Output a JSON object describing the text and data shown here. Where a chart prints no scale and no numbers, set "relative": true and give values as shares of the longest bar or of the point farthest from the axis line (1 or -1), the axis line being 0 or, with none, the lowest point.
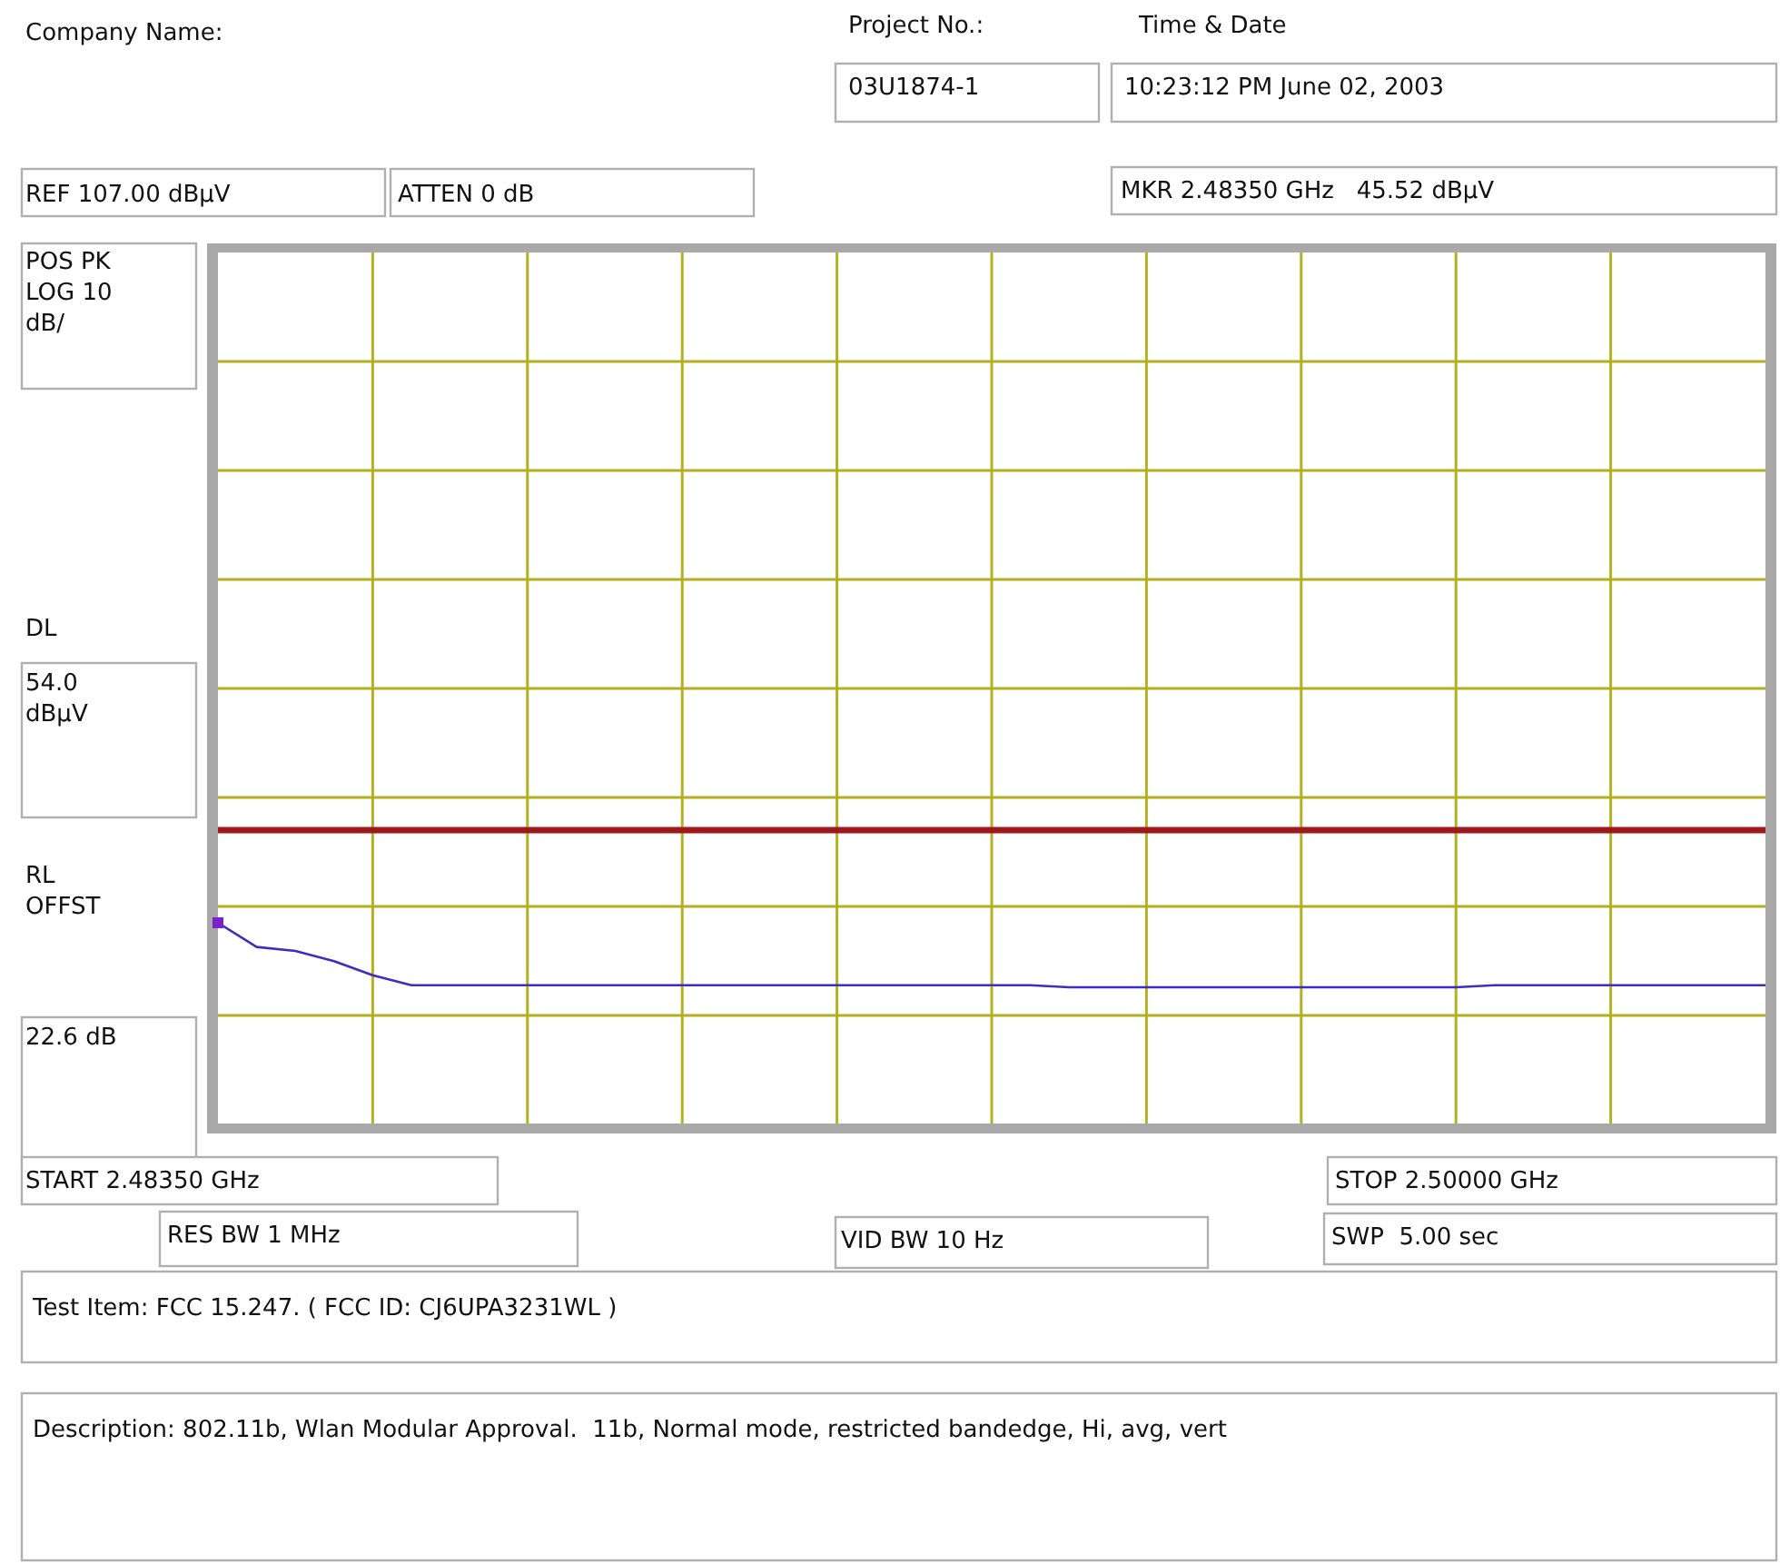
{
  "chart_data": {
    "type": "line",
    "relative": true,
    "categories": [
      null,
      null,
      null,
      null,
      null,
      null,
      null,
      null,
      null,
      null,
      null,
      null,
      null,
      null,
      null,
      null,
      null,
      null,
      null,
      null,
      null,
      null,
      null,
      null,
      null,
      null,
      null,
      null,
      null,
      null,
      null,
      null,
      null,
      null,
      null,
      null,
      null,
      null,
      null,
      null,
      null
    ],
    "series": [
      {
        "color": "#3b2fc2",
        "values": [
          1,
          0.88,
          0.86,
          0.81,
          0.74,
          0.69,
          0.69,
          0.69,
          0.69,
          0.69,
          0.69,
          0.69,
          0.69,
          0.69,
          0.69,
          0.69,
          0.69,
          0.69,
          0.69,
          0.69,
          0.69,
          0.69,
          0.68,
          0.68,
          0.68,
          0.68,
          0.68,
          0.68,
          0.68,
          0.68,
          0.68,
          0.68,
          0.68,
          0.69,
          0.69,
          0.69,
          0.69,
          0.69,
          0.69,
          0.69,
          0.69
        ]
      }
    ],
    "grid": true,
    "ref_lines": [
      {
        "axis": "y",
        "value": 1.46,
        "color": "#a01818"
      }
    ],
    "annotations": [
      "Company Name:",
      "Project No.:",
      "03U1874-1",
      "Time & Date",
      "10:23:12 PM June 02, 2003",
      "REF 107.00 dBµV",
      "ATTEN 0 dB",
      "MKR 2.48350 GHz   45.52 dBµV",
      "POS PK\nLOG 10\ndB/",
      "54.0\ndBµV",
      "RL\nOFFST",
      "22.6 dB",
      "START 2.48350 GHz",
      "STOP 2.50000 GHz",
      "RES BW 1 MHz",
      "VID BW 10 Hz",
      "SWP  5.00 sec",
      "Test Item: FCC 15.247. ( FCC ID: CJ6UPA3231WL )",
      "Description: 802.11b, Wlan Modular Approval.  11b, Normal mode, restricted bandedge, Hi, avg, vert",
      "DL"
    ]
  }
}
